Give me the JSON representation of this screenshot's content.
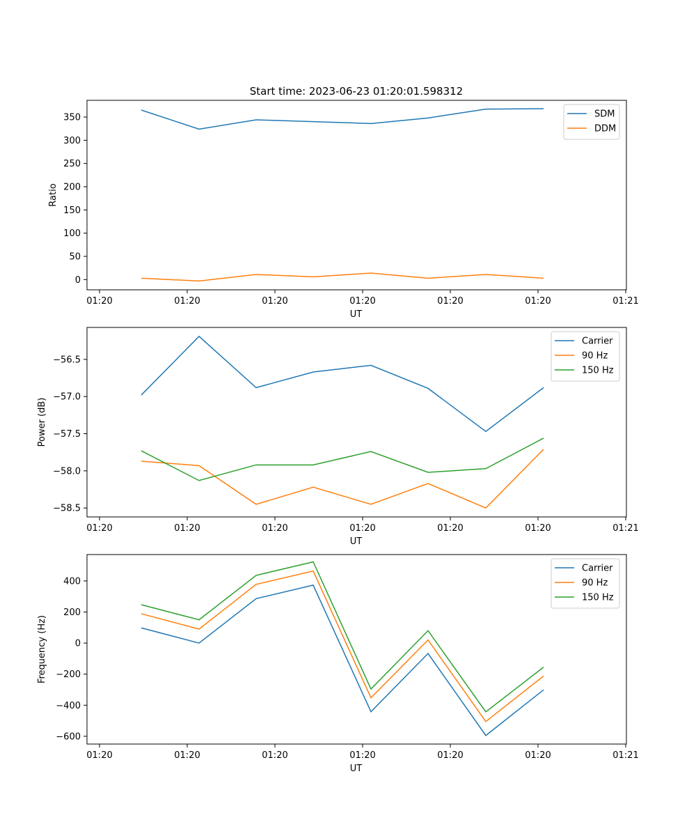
{
  "figure_title": "Start time: 2023-06-23 01:20:01.598312",
  "chart_data": [
    {
      "type": "line",
      "title": "Start time: 2023-06-23 01:20:01.598312",
      "xlabel": "UT",
      "ylabel": "Ratio",
      "x_tick_labels": [
        "01:20",
        "01:20",
        "01:20",
        "01:20",
        "01:20",
        "01:20",
        "01:21"
      ],
      "y_ticks": [
        0,
        50,
        100,
        150,
        200,
        250,
        300,
        350
      ],
      "ylim": [
        -22,
        386
      ],
      "grid": false,
      "legend_position": "upper right",
      "series": [
        {
          "name": "SDM",
          "color": "#1f77b4",
          "values": [
            365,
            324,
            344,
            340,
            336,
            348,
            367,
            368
          ]
        },
        {
          "name": "DDM",
          "color": "#ff7f0e",
          "values": [
            3,
            -3,
            11,
            6,
            14,
            3,
            11,
            3
          ]
        }
      ]
    },
    {
      "type": "line",
      "xlabel": "UT",
      "ylabel": "Power (dB)",
      "x_tick_labels": [
        "01:20",
        "01:20",
        "01:20",
        "01:20",
        "01:20",
        "01:20",
        "01:21"
      ],
      "y_ticks": [
        -58.5,
        -58.0,
        -57.5,
        -57.0,
        -56.5
      ],
      "y_tick_labels": [
        "−58.5",
        "−58.0",
        "−57.5",
        "−57.0",
        "−56.5"
      ],
      "ylim": [
        -58.62,
        -56.07
      ],
      "grid": false,
      "legend_position": "upper right",
      "series": [
        {
          "name": "Carrier",
          "color": "#1f77b4",
          "values": [
            -56.98,
            -56.19,
            -56.88,
            -56.67,
            -56.58,
            -56.89,
            -57.47,
            -56.88
          ]
        },
        {
          "name": "90 Hz",
          "color": "#ff7f0e",
          "values": [
            -57.87,
            -57.93,
            -58.45,
            -58.22,
            -58.45,
            -58.17,
            -58.5,
            -57.71
          ]
        },
        {
          "name": "150 Hz",
          "color": "#2ca02c",
          "values": [
            -57.73,
            -58.13,
            -57.92,
            -57.92,
            -57.74,
            -58.02,
            -57.97,
            -57.56
          ]
        }
      ]
    },
    {
      "type": "line",
      "xlabel": "UT",
      "ylabel": "Frequency (Hz)",
      "x_tick_labels": [
        "01:20",
        "01:20",
        "01:20",
        "01:20",
        "01:20",
        "01:20",
        "01:21"
      ],
      "y_ticks": [
        -600,
        -400,
        -200,
        0,
        200,
        400
      ],
      "y_tick_labels": [
        "−600",
        "−400",
        "−200",
        "0",
        "200",
        "400"
      ],
      "ylim": [
        -650,
        570
      ],
      "grid": false,
      "legend_position": "upper right",
      "series": [
        {
          "name": "Carrier",
          "color": "#1f77b4",
          "values": [
            98,
            0,
            286,
            373,
            -442,
            -67,
            -595,
            -301
          ]
        },
        {
          "name": "90 Hz",
          "color": "#ff7f0e",
          "values": [
            189,
            90,
            378,
            464,
            -352,
            20,
            -505,
            -212
          ]
        },
        {
          "name": "150 Hz",
          "color": "#2ca02c",
          "values": [
            247,
            150,
            436,
            523,
            -296,
            80,
            -443,
            -155
          ]
        }
      ]
    }
  ]
}
